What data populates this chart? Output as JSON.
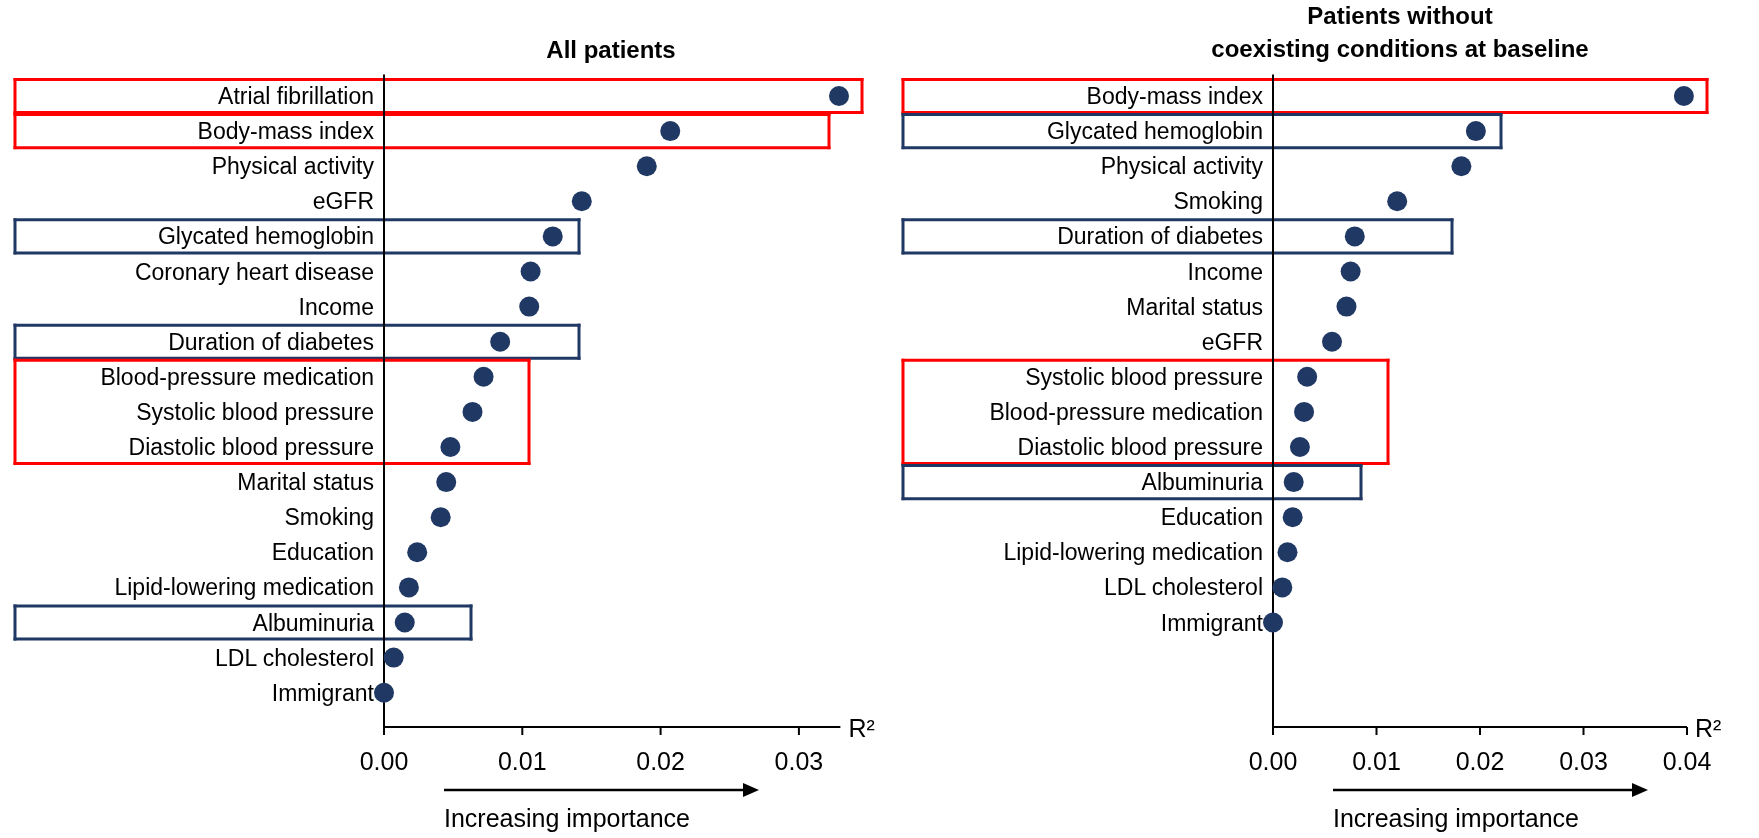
{
  "chart_data": [
    {
      "type": "scatter",
      "orientation": "horizontal",
      "title": "All patients",
      "xlabel": "R²",
      "marker": "circle",
      "color": "#203864",
      "categories": [
        "Atrial fibrillation",
        "Body-mass index",
        "Physical activity",
        "eGFR",
        "Glycated hemoglobin",
        "Coronary heart disease",
        "Income",
        "Duration of diabetes",
        "Blood-pressure medication",
        "Systolic blood pressure",
        "Diastolic blood pressure",
        "Marital status",
        "Smoking",
        "Education",
        "Lipid-lowering medication",
        "Albuminuria",
        "LDL cholesterol",
        "Immigrant"
      ],
      "values": [
        0.0329,
        0.0207,
        0.019,
        0.0143,
        0.0122,
        0.0106,
        0.0105,
        0.0084,
        0.0072,
        0.0064,
        0.0048,
        0.0045,
        0.0041,
        0.0024,
        0.0018,
        0.0015,
        0.0007,
        0
      ],
      "xlim": [
        0,
        0.033
      ],
      "xticks": [
        {
          "value": 0,
          "label": "0.00"
        },
        0.01,
        0.02,
        0.03
      ],
      "annotations": [
        "Increasing importance"
      ]
    },
    {
      "type": "scatter",
      "orientation": "horizontal",
      "title": "Patients without\ncoexisting conditions at baseline",
      "xlabel": "R²",
      "marker": "circle",
      "color": "#203864",
      "categories": [
        "Body-mass index",
        "Glycated hemoglobin",
        "Physical activity",
        "Smoking",
        "Duration of diabetes",
        "Income",
        "Marital status",
        "eGFR",
        "Systolic blood pressure",
        "Blood-pressure medication",
        "Diastolic blood pressure",
        "Albuminuria",
        "Education",
        "Lipid-lowering medication",
        "LDL cholesterol",
        "Immigrant"
      ],
      "values": [
        0.0397,
        0.0196,
        0.0182,
        0.012,
        0.0079,
        0.0075,
        0.0071,
        0.0057,
        0.0033,
        0.003,
        0.0026,
        0.002,
        0.0019,
        0.0014,
        0.0009,
        0
      ],
      "xlim": [
        0,
        0.04
      ],
      "xticks": [
        {
          "value": 0,
          "label": "0.00"
        },
        0.01,
        0.02,
        0.03,
        0.04
      ],
      "annotations": [
        "Increasing importance"
      ]
    }
  ]
}
